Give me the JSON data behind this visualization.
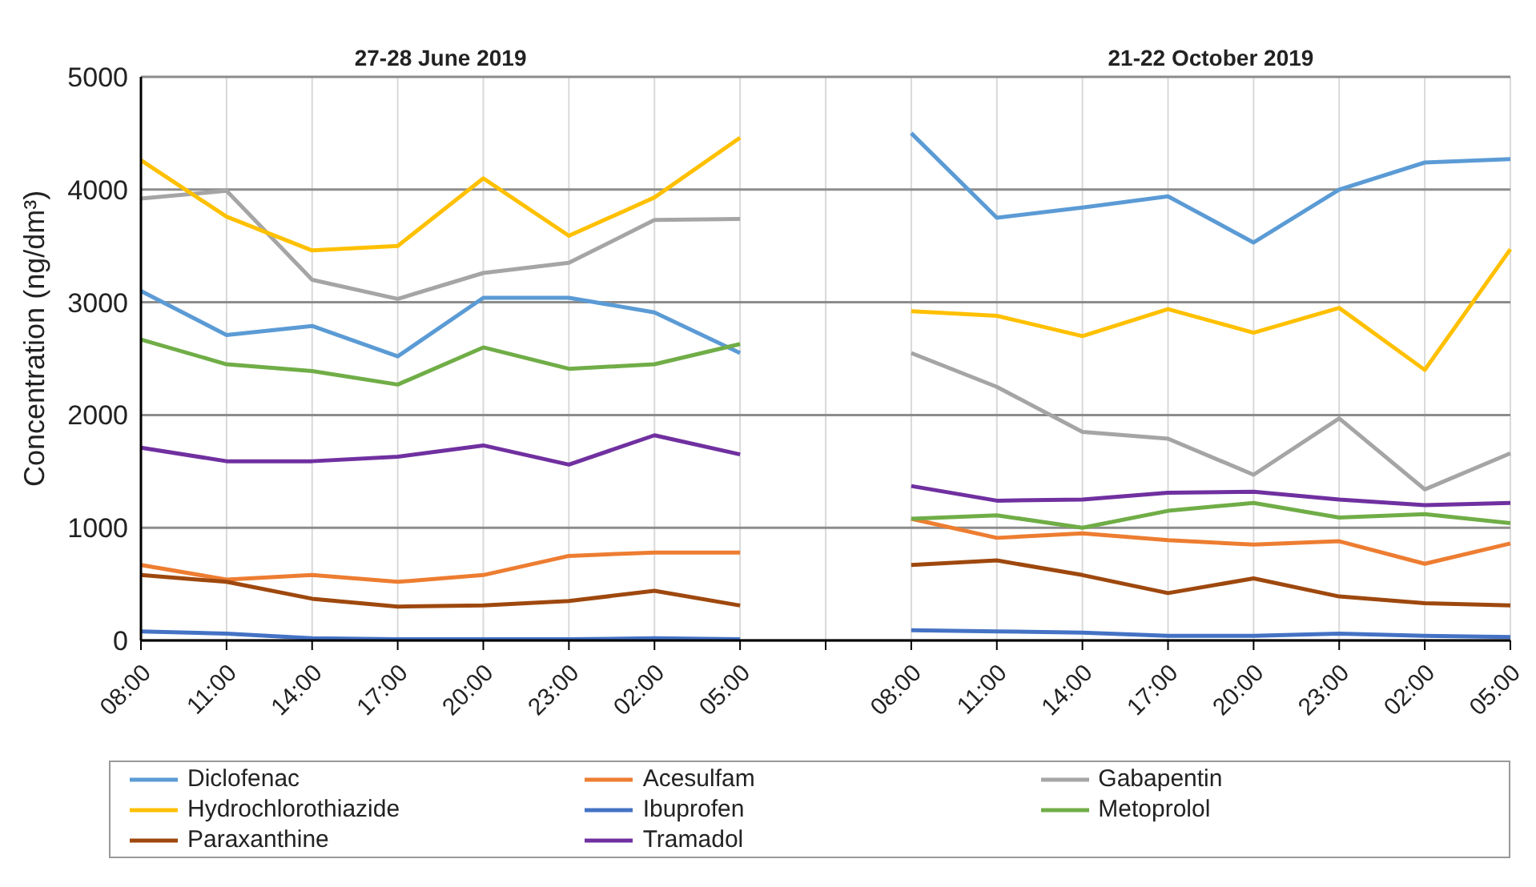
{
  "chart_data": {
    "type": "line",
    "ylabel": "Concentration (ng/dm³)",
    "annotations": [
      "27-28 June 2019",
      "21-22 October 2019"
    ],
    "categories": [
      "08:00",
      "11:00",
      "14:00",
      "17:00",
      "20:00",
      "23:00",
      "02:00",
      "05:00",
      null,
      "08:00",
      "11:00",
      "14:00",
      "17:00",
      "20:00",
      "23:00",
      "02:00",
      "05:00"
    ],
    "series": [
      {
        "name": "Diclofenac",
        "color": "#5b9bd5",
        "values": [
          3100,
          2710,
          2790,
          2520,
          3040,
          3040,
          2910,
          2550,
          null,
          4500,
          3750,
          3840,
          3940,
          3530,
          4000,
          4240,
          4270
        ]
      },
      {
        "name": "Acesulfam",
        "color": "#ed7d31",
        "values": [
          670,
          540,
          580,
          520,
          580,
          750,
          780,
          780,
          null,
          1080,
          910,
          950,
          890,
          850,
          880,
          680,
          860
        ]
      },
      {
        "name": "Gabapentin",
        "color": "#a5a5a5",
        "values": [
          3920,
          3990,
          3200,
          3030,
          3260,
          3350,
          3730,
          3740,
          null,
          2550,
          2250,
          1850,
          1790,
          1470,
          1970,
          1340,
          1660
        ]
      },
      {
        "name": "Hydrochlorothiazide",
        "color": "#ffc000",
        "values": [
          4260,
          3760,
          3460,
          3500,
          4100,
          3590,
          3930,
          4460,
          null,
          2920,
          2880,
          2700,
          2940,
          2730,
          2950,
          2400,
          3470
        ]
      },
      {
        "name": "Ibuprofen",
        "color": "#4472c4",
        "values": [
          80,
          60,
          20,
          10,
          10,
          10,
          20,
          10,
          null,
          90,
          80,
          70,
          40,
          40,
          60,
          40,
          30
        ]
      },
      {
        "name": "Metoprolol",
        "color": "#70ad47",
        "values": [
          2670,
          2450,
          2390,
          2270,
          2600,
          2410,
          2450,
          2630,
          null,
          1080,
          1110,
          1000,
          1150,
          1220,
          1090,
          1120,
          1040
        ]
      },
      {
        "name": "Paraxanthine",
        "color": "#9e480e",
        "values": [
          580,
          520,
          370,
          300,
          310,
          350,
          440,
          310,
          null,
          670,
          710,
          580,
          420,
          550,
          390,
          330,
          310
        ]
      },
      {
        "name": "Tramadol",
        "color": "#7030a0",
        "values": [
          1710,
          1590,
          1590,
          1630,
          1730,
          1560,
          1820,
          1650,
          null,
          1370,
          1240,
          1250,
          1310,
          1320,
          1250,
          1200,
          1220
        ]
      }
    ],
    "ylim": [
      0,
      5000
    ],
    "yticks": [
      0,
      1000,
      2000,
      3000,
      4000,
      5000
    ],
    "grid": true,
    "legend": "bottom",
    "marker": "none",
    "line_style": "solid"
  }
}
